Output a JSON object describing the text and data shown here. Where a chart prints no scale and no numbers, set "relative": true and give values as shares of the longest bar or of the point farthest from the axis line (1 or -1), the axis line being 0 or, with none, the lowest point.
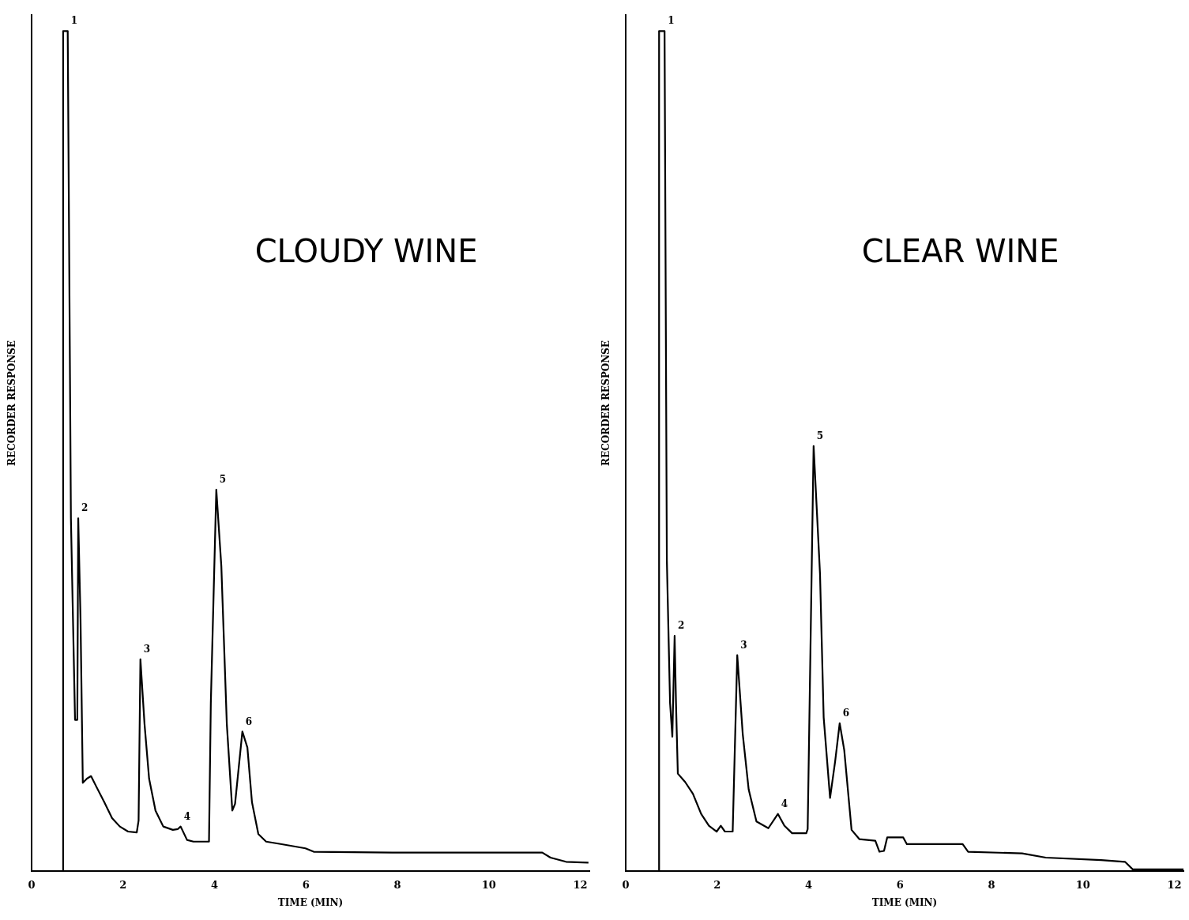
{
  "chart_data": [
    {
      "type": "line",
      "title": "CLOUDY WINE",
      "xlabel": "TIME (MIN)",
      "ylabel": "RECORDER RESPONSE",
      "relative": true,
      "grid": false,
      "marker": "none",
      "line_style": "solid",
      "xlim": [
        0,
        12.2
      ],
      "xticks": [
        0,
        2,
        4,
        6,
        8,
        10,
        12
      ],
      "x": [
        0.69,
        0.69,
        0.79,
        0.86,
        0.95,
        1.0,
        1.02,
        1.07,
        1.12,
        1.21,
        1.3,
        1.42,
        1.59,
        1.76,
        1.93,
        2.11,
        2.3,
        2.34,
        2.38,
        2.47,
        2.57,
        2.71,
        2.88,
        3.09,
        3.2,
        3.26,
        3.33,
        3.4,
        3.54,
        3.85,
        3.88,
        3.92,
        4.04,
        4.15,
        4.27,
        4.39,
        4.45,
        4.61,
        4.72,
        4.82,
        4.96,
        5.13,
        5.47,
        5.99,
        6.17,
        7.89,
        11.17,
        11.35,
        11.69,
        12.18
      ],
      "series": [
        {
          "color": "#000000",
          "values": [
            0,
            1.0,
            1.0,
            0.42,
            0.18,
            0.18,
            0.42,
            0.3,
            0.105,
            0.11,
            0.113,
            0.1,
            0.082,
            0.063,
            0.053,
            0.047,
            0.046,
            0.06,
            0.252,
            0.175,
            0.11,
            0.072,
            0.053,
            0.049,
            0.05,
            0.053,
            0.045,
            0.037,
            0.035,
            0.035,
            0.035,
            0.2,
            0.454,
            0.363,
            0.175,
            0.072,
            0.08,
            0.166,
            0.147,
            0.082,
            0.044,
            0.035,
            0.032,
            0.027,
            0.023,
            0.022,
            0.022,
            0.016,
            0.011,
            0.01
          ]
        }
      ],
      "annotations": [
        {
          "text": "1",
          "x": 0.79,
          "y": 1.0
        },
        {
          "text": "2",
          "x": 1.02,
          "y": 0.42
        },
        {
          "text": "3",
          "x": 2.38,
          "y": 0.252
        },
        {
          "text": "4",
          "x": 3.26,
          "y": 0.053
        },
        {
          "text": "5",
          "x": 4.04,
          "y": 0.454
        },
        {
          "text": "6",
          "x": 4.61,
          "y": 0.166
        }
      ]
    },
    {
      "type": "line",
      "title": "CLEAR WINE",
      "xlabel": "TIME (MIN)",
      "ylabel": "RECORDER RESPONSE",
      "relative": true,
      "grid": false,
      "marker": "none",
      "line_style": "solid",
      "xlim": [
        0,
        12.2
      ],
      "xticks": [
        0,
        2,
        4,
        6,
        8,
        10,
        12
      ],
      "x": [
        0.73,
        0.73,
        0.85,
        0.9,
        0.97,
        1.02,
        1.07,
        1.1,
        1.14,
        1.3,
        1.47,
        1.65,
        1.82,
        1.99,
        2.08,
        2.17,
        2.34,
        2.44,
        2.56,
        2.69,
        2.86,
        3.12,
        3.33,
        3.47,
        3.64,
        3.95,
        3.98,
        4.11,
        4.25,
        4.33,
        4.47,
        4.58,
        4.68,
        4.78,
        4.94,
        5.11,
        5.46,
        5.55,
        5.65,
        5.72,
        6.07,
        6.15,
        7.37,
        7.49,
        8.67,
        9.19,
        10.4,
        10.92,
        11.09,
        12.2
      ],
      "series": [
        {
          "color": "#000000",
          "values": [
            0,
            1.0,
            1.0,
            0.37,
            0.2,
            0.16,
            0.28,
            0.2,
            0.116,
            0.106,
            0.092,
            0.068,
            0.054,
            0.047,
            0.054,
            0.047,
            0.047,
            0.257,
            0.163,
            0.097,
            0.059,
            0.051,
            0.068,
            0.054,
            0.045,
            0.045,
            0.05,
            0.506,
            0.354,
            0.183,
            0.087,
            0.13,
            0.176,
            0.144,
            0.049,
            0.038,
            0.036,
            0.023,
            0.024,
            0.04,
            0.04,
            0.032,
            0.032,
            0.023,
            0.021,
            0.016,
            0.013,
            0.011,
            0.002,
            0.002
          ]
        }
      ],
      "annotations": [
        {
          "text": "1",
          "x": 0.85,
          "y": 1.0
        },
        {
          "text": "2",
          "x": 1.07,
          "y": 0.28
        },
        {
          "text": "3",
          "x": 2.44,
          "y": 0.257
        },
        {
          "text": "4",
          "x": 3.33,
          "y": 0.068
        },
        {
          "text": "5",
          "x": 4.11,
          "y": 0.506
        },
        {
          "text": "6",
          "x": 4.68,
          "y": 0.176
        }
      ]
    }
  ]
}
